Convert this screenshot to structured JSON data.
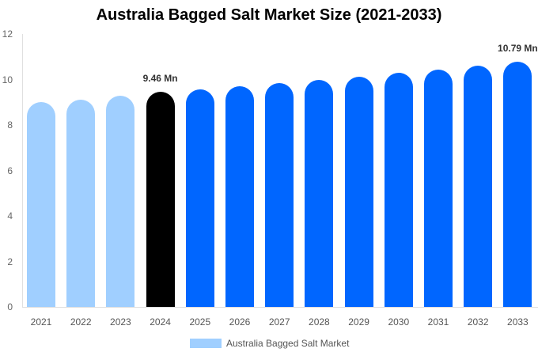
{
  "header": {
    "title": "Australia Bagged Salt Market Size (2021-2033)"
  },
  "legend": {
    "label": "Australia Bagged Salt Market",
    "color": "#a0cfff"
  },
  "colors": {
    "historical": "#a0cfff",
    "base_year": "#000000",
    "forecast": "#0066ff"
  },
  "chart_data": {
    "type": "bar",
    "title": "Australia Bagged Salt Market Size (2021-2033)",
    "xlabel": "",
    "ylabel": "",
    "ylim": [
      0,
      12
    ],
    "yticks": [
      0,
      2,
      4,
      6,
      8,
      10,
      12
    ],
    "grid": false,
    "legend_position": "bottom",
    "categories": [
      "2021",
      "2022",
      "2023",
      "2024",
      "2025",
      "2026",
      "2027",
      "2028",
      "2029",
      "2030",
      "2031",
      "2032",
      "2033"
    ],
    "series": [
      {
        "name": "Australia Bagged Salt Market",
        "values": [
          9.0,
          9.13,
          9.29,
          9.46,
          9.57,
          9.7,
          9.84,
          9.98,
          10.13,
          10.28,
          10.44,
          10.61,
          10.79
        ]
      }
    ],
    "annotations": [
      {
        "category": "2024",
        "text": "9.46 Mn"
      },
      {
        "category": "2033",
        "text": "10.79 Mn"
      }
    ],
    "unit": "Mn"
  }
}
